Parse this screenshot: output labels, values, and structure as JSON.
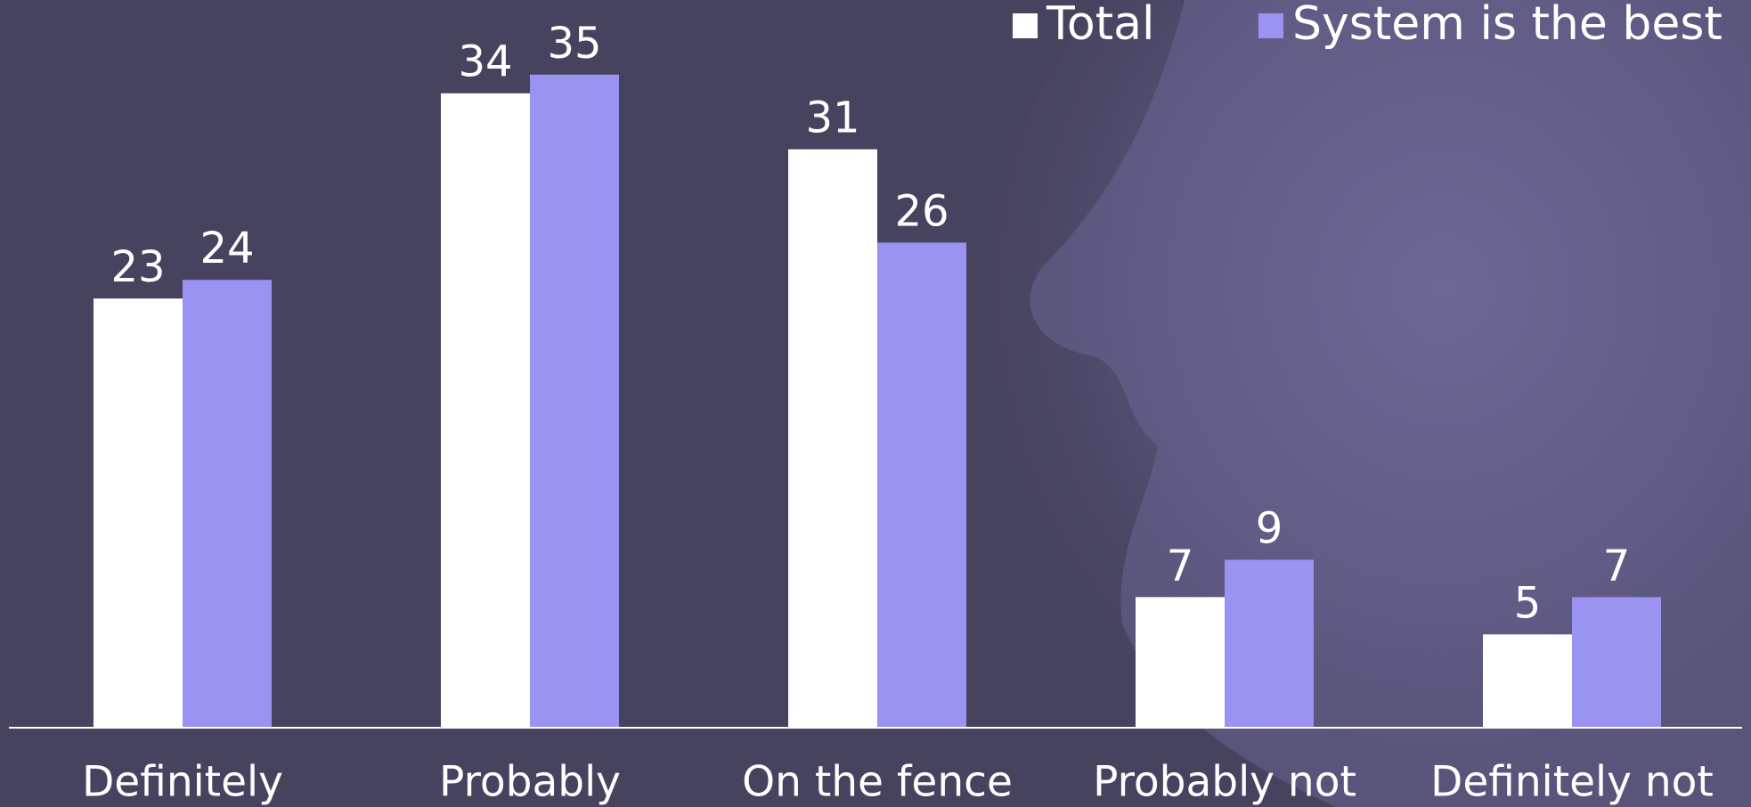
{
  "chart_data": {
    "type": "bar",
    "categories": [
      "Definitely",
      "Probably",
      "On the fence",
      "Probably not",
      "Definitely not"
    ],
    "series": [
      {
        "name": "Total",
        "color": "#ffffff",
        "values": [
          23,
          34,
          31,
          7,
          5
        ]
      },
      {
        "name": "System is the best",
        "color": "#9b93f2",
        "values": [
          24,
          35,
          26,
          9,
          7
        ]
      }
    ],
    "ylim": [
      0,
      39
    ],
    "legend": "top-right",
    "grid": false
  }
}
